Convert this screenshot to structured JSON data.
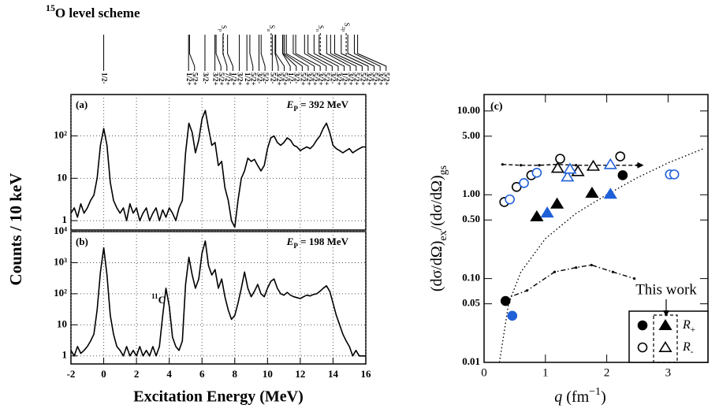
{
  "chart_data": [
    {
      "type": "level-scheme",
      "title_parts": [
        {
          "text": "15",
          "sup": true
        },
        {
          "text": "O level scheme"
        }
      ],
      "levels": [
        {
          "energy": 0,
          "label": "1/2-"
        },
        {
          "energy": 5.18,
          "label": "1/2+"
        },
        {
          "energy": 5.24,
          "label": "5/2+"
        },
        {
          "energy": 6.18,
          "label": "3/2-"
        },
        {
          "energy": 6.79,
          "label": "3/2+"
        },
        {
          "energy": 6.86,
          "label": "5/2+"
        },
        {
          "energy": 7.28,
          "label": "7/2+"
        },
        {
          "energy": 7.56,
          "label": "1/2+"
        },
        {
          "energy": 8.28,
          "label": "3/2+"
        },
        {
          "energy": 8.74,
          "label": "1/2+"
        },
        {
          "energy": 8.92,
          "label": "5/2+"
        },
        {
          "energy": 9.48,
          "label": "3/2-"
        },
        {
          "energy": 9.61,
          "label": "5/2-"
        },
        {
          "energy": 10.29,
          "label": "5/2-"
        },
        {
          "energy": 10.46,
          "label": "3/2+"
        },
        {
          "energy": 10.5,
          "label": "5/2+"
        },
        {
          "energy": 10.92,
          "label": "1/2-"
        },
        {
          "energy": 10.94,
          "label": "3/2-"
        },
        {
          "energy": 11.03,
          "label": "5/2+"
        },
        {
          "energy": 11.15,
          "label": "3/2+"
        },
        {
          "energy": 11.57,
          "label": "5/2+"
        },
        {
          "energy": 11.72,
          "label": "3/2+"
        },
        {
          "energy": 12.26,
          "label": "5/2+"
        },
        {
          "energy": 12.47,
          "label": "3/2-"
        },
        {
          "energy": 12.84,
          "label": "3/2+"
        },
        {
          "energy": 13.15,
          "label": "1/2+"
        },
        {
          "energy": 13.61,
          "label": "3/2+"
        },
        {
          "energy": 13.85,
          "label": "5/2+"
        },
        {
          "energy": 14.1,
          "label": "5/2+"
        },
        {
          "energy": 14.5,
          "label": "3/2+"
        },
        {
          "energy": 14.9,
          "label": "5/2+"
        },
        {
          "energy": 15.3,
          "label": "3/2+"
        },
        {
          "energy": 15.5,
          "label": "5/2+"
        }
      ],
      "thresholds": [
        {
          "energy": 7.3,
          "parts": [
            {
              "text": "S"
            },
            {
              "text": "p",
              "sub": true
            }
          ]
        },
        {
          "energy": 10.22,
          "parts": [
            {
              "text": "S"
            },
            {
              "text": "α",
              "sub": true
            }
          ]
        },
        {
          "energy": 13.22,
          "parts": [
            {
              "text": "S"
            },
            {
              "text": "n",
              "sub": true
            }
          ]
        },
        {
          "energy": 14.8,
          "parts": [
            {
              "text": "S"
            },
            {
              "text": "2p",
              "sub": true
            }
          ]
        }
      ]
    },
    {
      "type": "line",
      "log_scale": true,
      "grid": true,
      "color": "#000000",
      "panel_label": "(a)",
      "annotation_parts": [
        {
          "text": "E",
          "italic": true
        },
        {
          "text": "P",
          "sub": true
        },
        {
          "text": " = 392 MeV"
        }
      ],
      "ylabel": "Counts / 10 keV",
      "ylim": [
        0.6,
        950
      ],
      "yticks": [
        1,
        10,
        {
          "value": 100,
          "label": "10²"
        }
      ],
      "x": [
        -2,
        -1.8,
        -1.6,
        -1.4,
        -1.2,
        -1,
        -0.8,
        -0.6,
        -0.4,
        -0.2,
        0,
        0.2,
        0.4,
        0.6,
        0.8,
        1,
        1.2,
        1.4,
        1.6,
        1.8,
        2,
        2.2,
        2.4,
        2.6,
        2.8,
        3,
        3.2,
        3.4,
        3.6,
        3.8,
        4,
        4.2,
        4.4,
        4.6,
        4.8,
        5,
        5.2,
        5.4,
        5.6,
        5.8,
        6,
        6.2,
        6.4,
        6.6,
        6.8,
        7,
        7.2,
        7.4,
        7.6,
        7.8,
        8,
        8.2,
        8.4,
        8.6,
        8.8,
        9,
        9.2,
        9.4,
        9.6,
        9.8,
        10,
        10.2,
        10.4,
        10.6,
        10.8,
        11,
        11.2,
        11.4,
        11.6,
        11.8,
        12,
        12.2,
        12.4,
        12.6,
        12.8,
        13,
        13.2,
        13.4,
        13.6,
        13.8,
        14,
        14.2,
        14.4,
        14.6,
        14.8,
        15,
        15.2,
        15.4,
        15.6,
        15.8,
        16
      ],
      "values": [
        1.5,
        2,
        1.2,
        2.5,
        1.5,
        2,
        3,
        4,
        10,
        60,
        150,
        60,
        8,
        3,
        2,
        1.5,
        2,
        1,
        2.5,
        1.5,
        2,
        1,
        1.5,
        2,
        1,
        1.5,
        2,
        1,
        1.8,
        1.2,
        2,
        1.5,
        1,
        2,
        3,
        40,
        200,
        120,
        40,
        80,
        250,
        400,
        150,
        60,
        70,
        20,
        25,
        6,
        3,
        1,
        0.7,
        3,
        10,
        15,
        30,
        25,
        28,
        20,
        15,
        20,
        50,
        90,
        100,
        70,
        60,
        70,
        90,
        80,
        60,
        55,
        45,
        50,
        55,
        50,
        60,
        80,
        100,
        150,
        200,
        120,
        60,
        50,
        45,
        40,
        45,
        50,
        40,
        45,
        50,
        55,
        55
      ]
    },
    {
      "type": "line",
      "log_scale": true,
      "grid": true,
      "color": "#000000",
      "panel_label": "(b)",
      "annotation_parts": [
        {
          "text": "E",
          "italic": true
        },
        {
          "text": "P",
          "sub": true
        },
        {
          "text": " = 198 MeV"
        }
      ],
      "peak_label_parts": [
        {
          "text": "11",
          "sup": true
        },
        {
          "text": "C"
        }
      ],
      "xlabel": "Excitation Energy (MeV)",
      "xlim": [
        -2,
        16
      ],
      "xticks": [
        -2,
        0,
        2,
        4,
        6,
        8,
        10,
        12,
        14,
        16
      ],
      "ylim": [
        0.55,
        10000
      ],
      "yticks": [
        1,
        10,
        {
          "value": 100,
          "label": "10²"
        },
        {
          "value": 1000,
          "label": "10³"
        },
        {
          "value": 10000,
          "label": "10⁴"
        }
      ],
      "x": [
        -2,
        -1.8,
        -1.6,
        -1.4,
        -1.2,
        -1,
        -0.8,
        -0.6,
        -0.4,
        -0.2,
        0,
        0.2,
        0.4,
        0.6,
        0.8,
        1,
        1.2,
        1.4,
        1.6,
        1.8,
        2,
        2.2,
        2.4,
        2.6,
        2.8,
        3,
        3.2,
        3.4,
        3.6,
        3.8,
        4,
        4.2,
        4.4,
        4.6,
        4.8,
        5,
        5.2,
        5.4,
        5.6,
        5.8,
        6,
        6.2,
        6.4,
        6.6,
        6.8,
        7,
        7.2,
        7.4,
        7.6,
        7.8,
        8,
        8.2,
        8.4,
        8.6,
        8.8,
        9,
        9.2,
        9.4,
        9.6,
        9.8,
        10,
        10.2,
        10.4,
        10.6,
        10.8,
        11,
        11.2,
        11.4,
        11.6,
        11.8,
        12,
        12.2,
        12.4,
        12.6,
        12.8,
        13,
        13.2,
        13.4,
        13.6,
        13.8,
        14,
        14.2,
        14.4,
        14.6,
        14.8,
        15,
        15.2,
        15.4,
        15.6,
        15.8,
        16
      ],
      "values": [
        1.5,
        1,
        2,
        1.2,
        1.5,
        2,
        3,
        5,
        30,
        500,
        3000,
        400,
        20,
        5,
        2,
        1.5,
        1,
        2,
        1,
        1.5,
        1,
        2,
        1,
        1.5,
        1,
        2,
        1,
        2,
        20,
        150,
        40,
        4,
        2,
        1.5,
        3,
        200,
        1500,
        400,
        150,
        300,
        2000,
        5000,
        800,
        400,
        600,
        150,
        300,
        80,
        30,
        15,
        20,
        50,
        150,
        500,
        150,
        80,
        120,
        200,
        100,
        80,
        150,
        250,
        300,
        150,
        100,
        90,
        110,
        90,
        80,
        75,
        70,
        80,
        90,
        85,
        95,
        100,
        120,
        150,
        180,
        120,
        50,
        20,
        10,
        5,
        3,
        2,
        1,
        1.5,
        1,
        1,
        1
      ]
    },
    {
      "type": "scatter",
      "log_scale": true,
      "panel_label": "(c)",
      "ylabel_parts": [
        {
          "text": "(dσ/dΩ)"
        },
        {
          "text": "ex",
          "sub": true
        },
        {
          "text": "/(dσ/dΩ)"
        },
        {
          "text": "gs",
          "sub": true
        }
      ],
      "xlabel_parts": [
        {
          "text": "q",
          "italic": true
        },
        {
          "text": "  (fm"
        },
        {
          "text": "−1",
          "sup": true
        },
        {
          "text": ")"
        }
      ],
      "xlim": [
        0,
        3.65
      ],
      "xticks": [
        0,
        1,
        2,
        3
      ],
      "ylim": [
        0.01,
        15.7
      ],
      "yticks": [
        0.01,
        0.05,
        {
          "value": 0.1,
          "label": "0.10"
        },
        {
          "value": 0.5,
          "label": "0.50"
        },
        {
          "value": 1,
          "label": "1.00"
        },
        {
          "value": 5,
          "label": "5.00"
        },
        {
          "value": 10,
          "label": "10.00"
        }
      ],
      "series": [
        {
          "kind": "line",
          "dash": "dotted",
          "color": "#000000",
          "x": [
            0.25,
            0.4,
            0.6,
            1,
            1.5,
            2,
            2.5,
            3,
            3.6
          ],
          "values": [
            0.01,
            0.05,
            0.12,
            0.3,
            0.6,
            1,
            1.6,
            2.4,
            3.6
          ]
        },
        {
          "kind": "line",
          "dash": "dashed",
          "color": "#000000",
          "x": [
            0.3,
            0.6,
            0.9,
            1.2,
            1.5,
            1.8,
            2.1,
            2.5
          ],
          "values": [
            2.3,
            2.25,
            2.25,
            2.3,
            2.25,
            2.25,
            2.25,
            2.25
          ]
        },
        {
          "kind": "line",
          "dash": "dashdot",
          "color": "#000000",
          "x": [
            0.33,
            0.7,
            1.15,
            1.5,
            1.75,
            2.1,
            2.45
          ],
          "values": [
            0.057,
            0.072,
            0.12,
            0.135,
            0.145,
            0.12,
            0.1
          ]
        },
        {
          "kind": "marker",
          "marker": "circle",
          "filled": false,
          "color": "#000000",
          "x": [
            0.33,
            0.53,
            0.77,
            1.24,
            2.22
          ],
          "values": [
            0.82,
            1.24,
            1.71,
            2.69,
            2.87
          ]
        },
        {
          "kind": "marker",
          "marker": "circle",
          "filled": false,
          "color": "#2060d8",
          "x": [
            0.42,
            0.65,
            0.86,
            3.03,
            3.1
          ],
          "values": [
            0.88,
            1.38,
            1.83,
            1.75,
            1.75
          ]
        },
        {
          "kind": "marker",
          "marker": "triangle",
          "filled": false,
          "color": "#000000",
          "x": [
            1.2,
            1.53,
            1.78
          ],
          "values": [
            2.08,
            1.9,
            2.2
          ]
        },
        {
          "kind": "marker",
          "marker": "triangle",
          "filled": false,
          "color": "#2060d8",
          "x": [
            1.36,
            1.4,
            2.06
          ],
          "values": [
            1.64,
            2.03,
            2.3
          ]
        },
        {
          "kind": "marker",
          "marker": "circle",
          "filled": true,
          "color": "#000000",
          "x": [
            0.35,
            2.26
          ],
          "values": [
            0.054,
            1.71
          ]
        },
        {
          "kind": "marker",
          "marker": "circle",
          "filled": true,
          "color": "#2060d8",
          "x": [
            0.46
          ],
          "values": [
            0.036
          ]
        },
        {
          "kind": "marker",
          "marker": "triangle",
          "filled": true,
          "color": "#000000",
          "x": [
            0.86,
            1.19,
            1.76
          ],
          "values": [
            0.55,
            0.78,
            1.05
          ]
        },
        {
          "kind": "marker",
          "marker": "triangle",
          "filled": true,
          "color": "#2060d8",
          "x": [
            1.03,
            2.06
          ],
          "values": [
            0.61,
            1.02
          ]
        }
      ],
      "legend": {
        "title": "This work",
        "entries": [
          [
            {
              "text": "R",
              "italic": true
            },
            {
              "text": "+",
              "sub": true
            }
          ],
          [
            {
              "text": "R",
              "italic": true
            },
            {
              "text": "-",
              "sub": true
            }
          ]
        ]
      }
    }
  ]
}
